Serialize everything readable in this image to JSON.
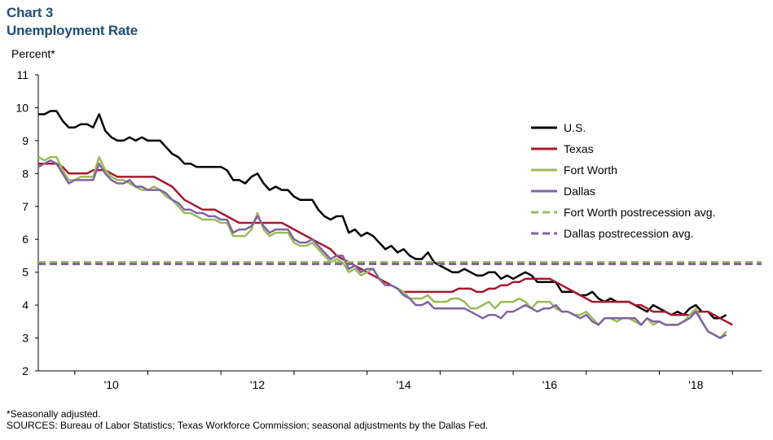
{
  "chart_label": "Chart 3",
  "chart_title": "Unemployment Rate",
  "footnote": "*Seasonally adjusted.",
  "sources": "SOURCES: Bureau of Labor Statistics; Texas Workforce Commission; seasonal adjustments by the Dallas Fed.",
  "chart_data": {
    "type": "line",
    "title": "Unemployment Rate",
    "ylabel": "Percent*",
    "ylim": [
      2,
      11
    ],
    "yticks": [
      "2",
      "3",
      "4",
      "5",
      "6",
      "7",
      "8",
      "9",
      "10",
      "11"
    ],
    "xlim": [
      2009.5,
      2019.4
    ],
    "xticks": [
      {
        "x": 2010,
        "label": "'10"
      },
      {
        "x": 2012,
        "label": "'12"
      },
      {
        "x": 2014,
        "label": "'14"
      },
      {
        "x": 2016,
        "label": "'16"
      },
      {
        "x": 2018,
        "label": "'18"
      }
    ],
    "legend_position": "right",
    "series": [
      {
        "name": "U.S.",
        "color": "#000000",
        "style": "solid",
        "x_start": 2009.5,
        "x_step": 0.0833333,
        "values": [
          9.8,
          9.8,
          9.9,
          9.9,
          9.6,
          9.4,
          9.4,
          9.5,
          9.5,
          9.4,
          9.8,
          9.3,
          9.1,
          9.0,
          9.0,
          9.1,
          9.0,
          9.1,
          9.0,
          9.0,
          9.0,
          8.8,
          8.6,
          8.5,
          8.3,
          8.3,
          8.2,
          8.2,
          8.2,
          8.2,
          8.2,
          8.1,
          7.8,
          7.8,
          7.7,
          7.9,
          8.0,
          7.7,
          7.5,
          7.6,
          7.5,
          7.5,
          7.3,
          7.2,
          7.2,
          7.2,
          6.9,
          6.7,
          6.6,
          6.7,
          6.7,
          6.2,
          6.3,
          6.1,
          6.2,
          6.1,
          5.9,
          5.7,
          5.8,
          5.6,
          5.7,
          5.5,
          5.4,
          5.4,
          5.6,
          5.3,
          5.2,
          5.1,
          5.0,
          5.0,
          5.1,
          5.0,
          4.9,
          4.9,
          5.0,
          5.0,
          4.8,
          4.9,
          4.8,
          4.9,
          5.0,
          4.9,
          4.7,
          4.7,
          4.7,
          4.7,
          4.4,
          4.4,
          4.4,
          4.3,
          4.3,
          4.4,
          4.2,
          4.1,
          4.2,
          4.1,
          4.1,
          4.1,
          4.0,
          3.9,
          3.8,
          4.0,
          3.9,
          3.8,
          3.7,
          3.8,
          3.7,
          3.9,
          4.0,
          3.8,
          3.8,
          3.6,
          3.6,
          3.7
        ]
      },
      {
        "name": "Texas",
        "color": "#a6192e",
        "style": "solid",
        "x_start": 2009.5,
        "x_step": 0.0833333,
        "values": [
          8.3,
          8.3,
          8.3,
          8.3,
          8.2,
          8.0,
          8.0,
          8.0,
          8.0,
          8.1,
          8.1,
          8.1,
          8.0,
          7.9,
          7.9,
          7.9,
          7.9,
          7.9,
          7.9,
          7.9,
          7.8,
          7.7,
          7.6,
          7.4,
          7.2,
          7.1,
          7.0,
          6.9,
          6.9,
          6.9,
          6.8,
          6.7,
          6.6,
          6.5,
          6.5,
          6.5,
          6.5,
          6.5,
          6.5,
          6.5,
          6.5,
          6.4,
          6.3,
          6.2,
          6.1,
          6.0,
          5.9,
          5.8,
          5.7,
          5.5,
          5.4,
          5.3,
          5.2,
          5.1,
          5.0,
          4.9,
          4.8,
          4.7,
          4.6,
          4.5,
          4.4,
          4.4,
          4.4,
          4.4,
          4.4,
          4.4,
          4.4,
          4.4,
          4.4,
          4.5,
          4.5,
          4.5,
          4.4,
          4.4,
          4.5,
          4.5,
          4.6,
          4.6,
          4.7,
          4.7,
          4.8,
          4.8,
          4.8,
          4.8,
          4.8,
          4.7,
          4.6,
          4.5,
          4.4,
          4.3,
          4.2,
          4.1,
          4.1,
          4.1,
          4.1,
          4.1,
          4.1,
          4.1,
          4.0,
          4.0,
          3.9,
          3.8,
          3.8,
          3.8,
          3.7,
          3.7,
          3.7,
          3.7,
          3.8,
          3.8,
          3.8,
          3.7,
          3.6,
          3.5,
          3.4
        ]
      },
      {
        "name": "Fort Worth",
        "color": "#9bbb59",
        "style": "solid",
        "x_start": 2009.5,
        "x_step": 0.0833333,
        "values": [
          8.5,
          8.4,
          8.5,
          8.5,
          8.1,
          7.8,
          7.8,
          7.9,
          7.9,
          7.9,
          8.5,
          8.1,
          7.9,
          7.8,
          7.8,
          7.7,
          7.6,
          7.5,
          7.5,
          7.6,
          7.5,
          7.3,
          7.2,
          7.0,
          6.8,
          6.8,
          6.7,
          6.6,
          6.6,
          6.6,
          6.5,
          6.5,
          6.1,
          6.1,
          6.1,
          6.3,
          6.8,
          6.3,
          6.1,
          6.2,
          6.2,
          6.2,
          5.9,
          5.8,
          5.8,
          5.9,
          5.7,
          5.5,
          5.3,
          5.4,
          5.3,
          5.0,
          5.1,
          4.9,
          5.0,
          5.1,
          4.8,
          4.6,
          4.6,
          4.5,
          4.4,
          4.2,
          4.2,
          4.2,
          4.3,
          4.1,
          4.1,
          4.1,
          4.2,
          4.2,
          4.1,
          3.9,
          3.9,
          4.0,
          4.1,
          3.9,
          4.1,
          4.1,
          4.1,
          4.2,
          4.1,
          3.9,
          4.1,
          4.1,
          4.1,
          3.9,
          3.8,
          3.8,
          3.7,
          3.7,
          3.8,
          3.6,
          3.4,
          3.6,
          3.6,
          3.5,
          3.6,
          3.6,
          3.5,
          3.4,
          3.6,
          3.4,
          3.5,
          3.4,
          3.4,
          3.4,
          3.5,
          3.7,
          3.9,
          3.5,
          3.2,
          3.1,
          3.0,
          3.2
        ]
      },
      {
        "name": "Dallas",
        "color": "#8064a2",
        "style": "solid",
        "x_start": 2009.5,
        "x_step": 0.0833333,
        "values": [
          8.2,
          8.3,
          8.4,
          8.3,
          8.0,
          7.7,
          7.8,
          7.8,
          7.8,
          7.8,
          8.3,
          8.0,
          7.8,
          7.7,
          7.7,
          7.8,
          7.6,
          7.6,
          7.5,
          7.5,
          7.5,
          7.4,
          7.2,
          7.1,
          6.9,
          6.9,
          6.8,
          6.8,
          6.7,
          6.7,
          6.6,
          6.6,
          6.2,
          6.3,
          6.3,
          6.4,
          6.7,
          6.4,
          6.2,
          6.3,
          6.3,
          6.3,
          6.0,
          5.9,
          5.9,
          6.0,
          5.8,
          5.6,
          5.4,
          5.5,
          5.5,
          5.1,
          5.2,
          5.0,
          5.1,
          5.1,
          4.8,
          4.6,
          4.6,
          4.5,
          4.3,
          4.2,
          4.0,
          4.0,
          4.1,
          3.9,
          3.9,
          3.9,
          3.9,
          3.9,
          3.9,
          3.8,
          3.7,
          3.6,
          3.7,
          3.7,
          3.6,
          3.8,
          3.8,
          3.9,
          4.0,
          3.9,
          3.8,
          3.9,
          3.9,
          4.0,
          3.8,
          3.8,
          3.7,
          3.6,
          3.7,
          3.5,
          3.4,
          3.6,
          3.6,
          3.6,
          3.6,
          3.6,
          3.6,
          3.4,
          3.6,
          3.5,
          3.5,
          3.4,
          3.4,
          3.4,
          3.5,
          3.6,
          3.8,
          3.5,
          3.2,
          3.1,
          3.0,
          3.1
        ]
      },
      {
        "name": "Fort Worth postrecession avg.",
        "color": "#9bbb59",
        "style": "dashed",
        "values": [
          5.3
        ]
      },
      {
        "name": "Dallas postrecession avg.",
        "color": "#8064a2",
        "style": "dashed",
        "values": [
          5.25
        ]
      }
    ]
  }
}
